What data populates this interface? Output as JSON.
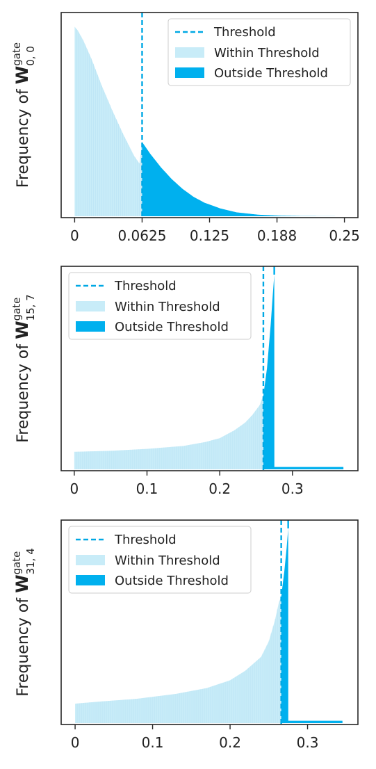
{
  "chart_data": [
    {
      "type": "area",
      "ylabel": {
        "prefix": "Frequency of ",
        "symbol": "W",
        "superscript": "gate",
        "subscript": "0, 0"
      },
      "xlim": [
        -0.0125,
        0.2625
      ],
      "xticks": [
        {
          "value": 0,
          "label": "0"
        },
        {
          "value": 0.0625,
          "label": "0.0625"
        },
        {
          "value": 0.125,
          "label": "0.125"
        },
        {
          "value": 0.1875,
          "label": "0.188"
        },
        {
          "value": 0.25,
          "label": "0.25"
        }
      ],
      "y_ticks_shown": false,
      "threshold": 0.0625,
      "legend": {
        "position": "top-right",
        "entries": [
          "Threshold",
          "Within Threshold",
          "Outside Threshold"
        ]
      },
      "colors": {
        "threshold": "#00a8e4",
        "within": "#c8ecf8",
        "outside": "#00b0ee"
      },
      "distribution": {
        "x": [
          0,
          0.003,
          0.008,
          0.016,
          0.025,
          0.035,
          0.045,
          0.055,
          0.06,
          0.0625,
          0.07,
          0.08,
          0.09,
          0.1,
          0.11,
          0.12,
          0.135,
          0.15,
          0.17,
          0.19,
          0.21,
          0.25
        ],
        "y": [
          0.97,
          0.95,
          0.9,
          0.8,
          0.67,
          0.54,
          0.42,
          0.31,
          0.27,
          0.38,
          0.32,
          0.25,
          0.19,
          0.14,
          0.1,
          0.07,
          0.04,
          0.02,
          0.008,
          0.003,
          0.001,
          0
        ]
      }
    },
    {
      "type": "area",
      "ylabel": {
        "prefix": "Frequency of ",
        "symbol": "W",
        "superscript": "gate",
        "subscript": "15, 7"
      },
      "xlim": [
        -0.018,
        0.39
      ],
      "xticks": [
        {
          "value": 0,
          "label": "0"
        },
        {
          "value": 0.1,
          "label": "0.1"
        },
        {
          "value": 0.2,
          "label": "0.2"
        },
        {
          "value": 0.3,
          "label": "0.3"
        }
      ],
      "y_ticks_shown": false,
      "threshold": 0.26,
      "peak_x": 0.275,
      "legend": {
        "position": "top-left",
        "entries": [
          "Threshold",
          "Within Threshold",
          "Outside Threshold"
        ]
      },
      "colors": {
        "threshold": "#00a8e4",
        "within": "#c8ecf8",
        "outside": "#00b0ee"
      },
      "distribution": {
        "x": [
          0,
          0.05,
          0.1,
          0.15,
          0.18,
          0.2,
          0.22,
          0.235,
          0.245,
          0.255,
          0.26,
          0.265,
          0.27,
          0.273,
          0.275,
          0.2751,
          0.37,
          0.3701
        ],
        "y": [
          0.09,
          0.095,
          0.105,
          0.12,
          0.14,
          0.16,
          0.2,
          0.24,
          0.28,
          0.33,
          0.38,
          0.52,
          0.74,
          0.9,
          1.0,
          0.012,
          0.012,
          0
        ]
      }
    },
    {
      "type": "area",
      "ylabel": {
        "prefix": "Frequency of ",
        "symbol": "W",
        "superscript": "gate",
        "subscript": "31, 4"
      },
      "xlim": [
        -0.018,
        0.365
      ],
      "xticks": [
        {
          "value": 0,
          "label": "0"
        },
        {
          "value": 0.1,
          "label": "0.1"
        },
        {
          "value": 0.2,
          "label": "0.2"
        },
        {
          "value": 0.3,
          "label": "0.3"
        }
      ],
      "y_ticks_shown": false,
      "threshold": 0.266,
      "peak_x": 0.275,
      "legend": {
        "position": "top-left",
        "entries": [
          "Threshold",
          "Within Threshold",
          "Outside Threshold"
        ]
      },
      "colors": {
        "threshold": "#00a8e4",
        "within": "#c8ecf8",
        "outside": "#00b0ee"
      },
      "distribution": {
        "x": [
          0,
          0.03,
          0.08,
          0.13,
          0.17,
          0.2,
          0.22,
          0.24,
          0.25,
          0.258,
          0.263,
          0.266,
          0.27,
          0.273,
          0.275,
          0.2751,
          0.345,
          0.3451
        ],
        "y": [
          0.1,
          0.11,
          0.125,
          0.15,
          0.18,
          0.22,
          0.27,
          0.34,
          0.42,
          0.53,
          0.62,
          0.65,
          0.78,
          0.9,
          1.0,
          0.012,
          0.012,
          0
        ]
      }
    }
  ]
}
